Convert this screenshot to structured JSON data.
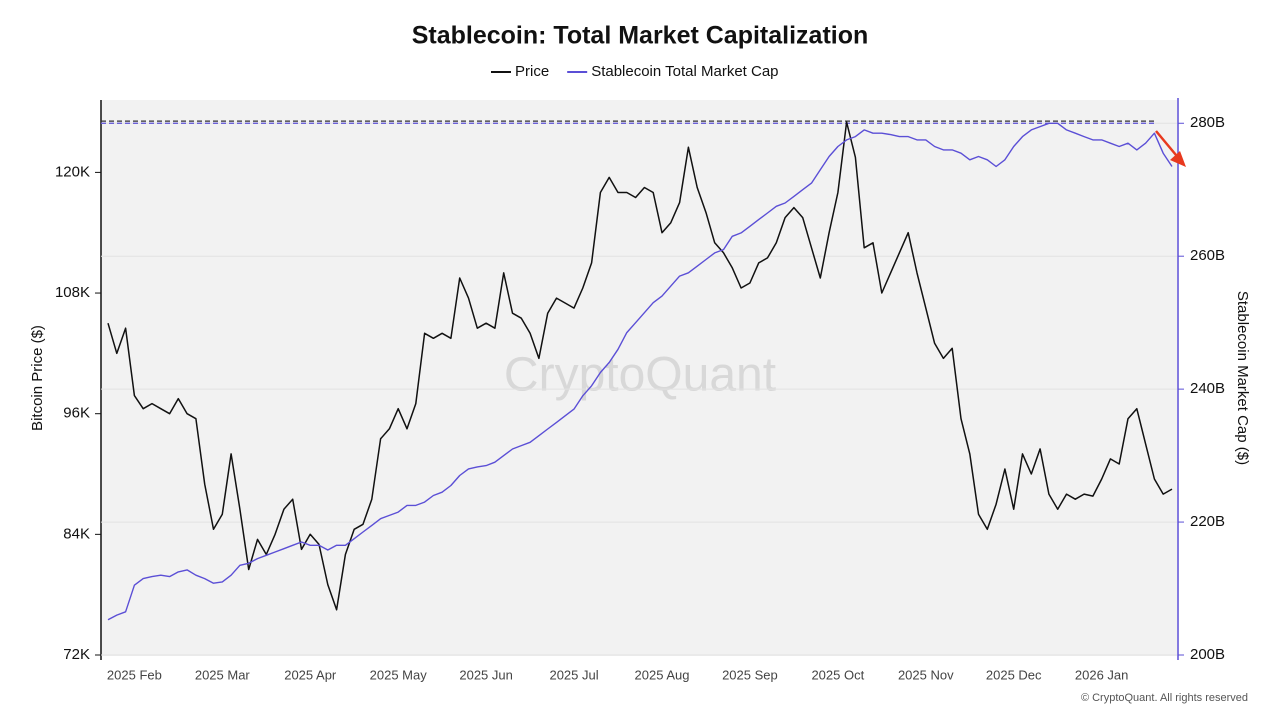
{
  "chart_data": {
    "type": "line",
    "title": "Stablecoin: Total Market Capitalization",
    "watermark": "CryptoQuant",
    "footer": "© CryptoQuant. All rights reserved",
    "ylabel": "Bitcoin Price ($)",
    "y2label": "Stablecoin Market Cap ($)",
    "categories": [
      null,
      null,
      null,
      "2025 Feb",
      null,
      null,
      null,
      null,
      null,
      null,
      null,
      null,
      null,
      "2025 Mar",
      null,
      null,
      null,
      null,
      null,
      null,
      null,
      null,
      null,
      "2025 Apr",
      null,
      null,
      null,
      null,
      null,
      null,
      null,
      null,
      null,
      "2025 May",
      null,
      null,
      null,
      null,
      null,
      null,
      null,
      null,
      null,
      "2025 Jun",
      null,
      null,
      null,
      null,
      null,
      null,
      null,
      null,
      null,
      "2025 Jul",
      null,
      null,
      null,
      null,
      null,
      null,
      null,
      null,
      null,
      "2025 Aug",
      null,
      null,
      null,
      null,
      null,
      null,
      null,
      null,
      null,
      "2025 Sep",
      null,
      null,
      null,
      null,
      null,
      null,
      null,
      null,
      null,
      "2025 Oct",
      null,
      null,
      null,
      null,
      null,
      null,
      null,
      null,
      null,
      "2025 Nov",
      null,
      null,
      null,
      null,
      null,
      null,
      null,
      null,
      null,
      "2025 Dec",
      null,
      null,
      null,
      null,
      null,
      null,
      null,
      null,
      null,
      "2026 Jan",
      null,
      null,
      null,
      null,
      null,
      null,
      null,
      null
    ],
    "ylim": [
      72000,
      127200
    ],
    "yticks": [
      {
        "value": 72000,
        "label": "72K"
      },
      {
        "value": 84000,
        "label": "84K"
      },
      {
        "value": 96000,
        "label": "96K"
      },
      {
        "value": 108000,
        "label": "108K"
      },
      {
        "value": 120000,
        "label": "120K"
      }
    ],
    "y2lim": [
      200000000000.0,
      283500000000.0
    ],
    "y2ticks": [
      {
        "value": 200000000000.0,
        "label": "200B"
      },
      {
        "value": 220000000000.0,
        "label": "220B"
      },
      {
        "value": 240000000000.0,
        "label": "240B"
      },
      {
        "value": 260000000000.0,
        "label": "260B"
      },
      {
        "value": 280000000000.0,
        "label": "280B"
      }
    ],
    "grid": true,
    "reference_lines": [
      {
        "axis": "y",
        "value": 125100,
        "color": "#333333"
      },
      {
        "axis": "y2",
        "value": 280000000000.0,
        "color": "#5b4fd6"
      }
    ],
    "series": [
      {
        "name": "Price",
        "color": "#111111",
        "axis": "y",
        "values": [
          105000,
          102000,
          104500,
          97800,
          96500,
          97000,
          96500,
          96000,
          97500,
          96000,
          95500,
          89000,
          84500,
          86000,
          92000,
          86500,
          80500,
          83500,
          82000,
          84000,
          86500,
          87500,
          82500,
          84000,
          83000,
          79000,
          76500,
          82000,
          84500,
          85000,
          87500,
          93500,
          94500,
          96500,
          94500,
          97000,
          104000,
          103500,
          104000,
          103500,
          109500,
          107500,
          104500,
          105000,
          104500,
          110000,
          106000,
          105500,
          104000,
          101500,
          106000,
          107500,
          107000,
          106500,
          108500,
          111000,
          118000,
          119500,
          118000,
          118000,
          117500,
          118500,
          118000,
          114000,
          115000,
          117000,
          122500,
          118500,
          116000,
          113000,
          112000,
          110500,
          108500,
          109000,
          111000,
          111500,
          113000,
          115500,
          116500,
          115500,
          112500,
          109500,
          114000,
          118000,
          125000,
          121500,
          112500,
          113000,
          108000,
          110000,
          112000,
          114000,
          110000,
          106500,
          103000,
          101500,
          102500,
          95500,
          92000,
          86000,
          84500,
          87000,
          90500,
          86500,
          92000,
          90000,
          92500,
          88000,
          86500,
          88000,
          87500,
          88000,
          87800,
          89500,
          91500,
          91000,
          95500,
          96500,
          93000,
          89500,
          88000,
          88500
        ]
      },
      {
        "name": "Stablecoin Total Market Cap",
        "color": "#5b4fd6",
        "axis": "y2",
        "values": [
          205300000000.0,
          206000000000.0,
          206500000000.0,
          210500000000.0,
          211500000000.0,
          211800000000.0,
          212000000000.0,
          211800000000.0,
          212500000000.0,
          212800000000.0,
          212000000000.0,
          211500000000.0,
          210800000000.0,
          211000000000.0,
          212000000000.0,
          213500000000.0,
          213800000000.0,
          214500000000.0,
          215000000000.0,
          215500000000.0,
          216000000000.0,
          216500000000.0,
          217000000000.0,
          216500000000.0,
          216500000000.0,
          215800000000.0,
          216500000000.0,
          216500000000.0,
          217500000000.0,
          218500000000.0,
          219500000000.0,
          220500000000.0,
          221000000000.0,
          221500000000.0,
          222500000000.0,
          222500000000.0,
          223000000000.0,
          224000000000.0,
          224500000000.0,
          225500000000.0,
          227000000000.0,
          228000000000.0,
          228300000000.0,
          228500000000.0,
          229000000000.0,
          230000000000.0,
          231000000000.0,
          231500000000.0,
          232000000000.0,
          233000000000.0,
          234000000000.0,
          235000000000.0,
          236000000000.0,
          237000000000.0,
          239000000000.0,
          240500000000.0,
          242500000000.0,
          244000000000.0,
          246000000000.0,
          248500000000.0,
          250000000000.0,
          251500000000.0,
          253000000000.0,
          254000000000.0,
          255500000000.0,
          257000000000.0,
          257500000000.0,
          258500000000.0,
          259500000000.0,
          260500000000.0,
          261000000000.0,
          263000000000.0,
          263500000000.0,
          264500000000.0,
          265500000000.0,
          266500000000.0,
          267500000000.0,
          268000000000.0,
          269000000000.0,
          270000000000.0,
          271000000000.0,
          273000000000.0,
          275000000000.0,
          276500000000.0,
          277500000000.0,
          278000000000.0,
          279000000000.0,
          278500000000.0,
          278500000000.0,
          278300000000.0,
          278000000000.0,
          278000000000.0,
          277500000000.0,
          277500000000.0,
          276500000000.0,
          276000000000.0,
          276000000000.0,
          275500000000.0,
          274500000000.0,
          275000000000.0,
          274500000000.0,
          273500000000.0,
          274500000000.0,
          276500000000.0,
          278000000000.0,
          279000000000.0,
          279500000000.0,
          280000000000.0,
          280000000000.0,
          279000000000.0,
          278500000000.0,
          278000000000.0,
          277500000000.0,
          277500000000.0,
          277000000000.0,
          276500000000.0,
          277000000000.0,
          276000000000.0,
          277000000000.0,
          278500000000.0,
          275500000000.0,
          273500000000.0
        ]
      }
    ]
  }
}
